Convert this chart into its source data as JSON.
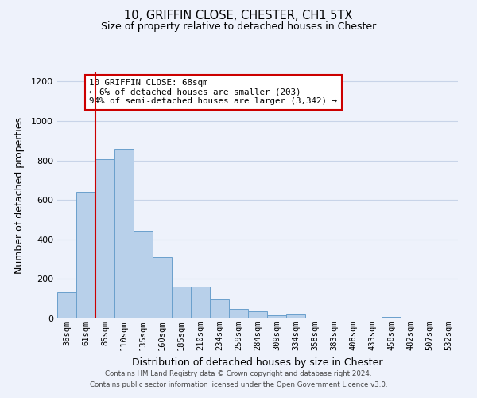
{
  "title": "10, GRIFFIN CLOSE, CHESTER, CH1 5TX",
  "subtitle": "Size of property relative to detached houses in Chester",
  "xlabel": "Distribution of detached houses by size in Chester",
  "ylabel": "Number of detached properties",
  "categories": [
    "36sqm",
    "61sqm",
    "85sqm",
    "110sqm",
    "135sqm",
    "160sqm",
    "185sqm",
    "210sqm",
    "234sqm",
    "259sqm",
    "284sqm",
    "309sqm",
    "334sqm",
    "358sqm",
    "383sqm",
    "408sqm",
    "433sqm",
    "458sqm",
    "482sqm",
    "507sqm",
    "532sqm"
  ],
  "values": [
    135,
    640,
    805,
    860,
    445,
    310,
    160,
    160,
    95,
    50,
    37,
    15,
    22,
    5,
    5,
    0,
    0,
    10,
    0,
    0,
    0
  ],
  "bar_color": "#b8d0ea",
  "bar_edge_color": "#6aa0cc",
  "vline_color": "#cc0000",
  "vline_x": 1.5,
  "annotation_title": "10 GRIFFIN CLOSE: 68sqm",
  "annotation_line1": "← 6% of detached houses are smaller (203)",
  "annotation_line2": "94% of semi-detached houses are larger (3,342) →",
  "annotation_box_color": "#ffffff",
  "annotation_box_edge": "#cc0000",
  "ylim": [
    0,
    1250
  ],
  "yticks": [
    0,
    200,
    400,
    600,
    800,
    1000,
    1200
  ],
  "footer1": "Contains HM Land Registry data © Crown copyright and database right 2024.",
  "footer2": "Contains public sector information licensed under the Open Government Licence v3.0.",
  "bg_color": "#eef2fb",
  "grid_color": "#c8d4e8"
}
